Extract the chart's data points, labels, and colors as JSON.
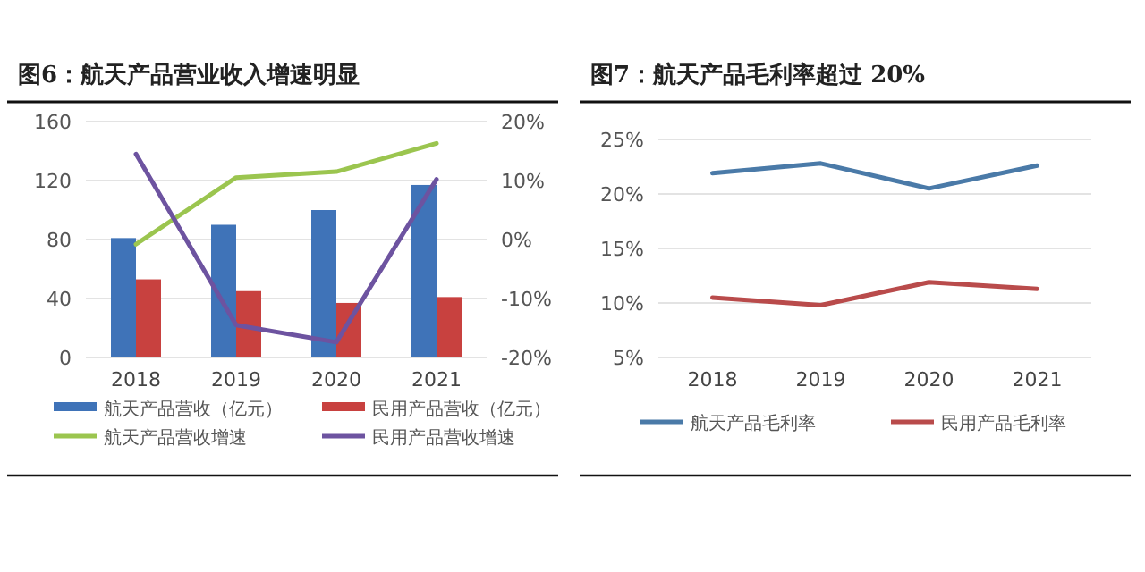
{
  "chart_data": [
    {
      "type": "bar",
      "title": "图6：航天产品营业收入增速明显",
      "categories": [
        "2018",
        "2019",
        "2020",
        "2021"
      ],
      "ylim": [
        0,
        160
      ],
      "yticks": [
        0,
        40,
        80,
        120,
        160
      ],
      "y2lim": [
        -20,
        20
      ],
      "y2ticks": [
        {
          "value": -20,
          "label": "-20%"
        },
        {
          "value": -10,
          "label": "-10%"
        },
        {
          "value": 0,
          "label": "0%"
        },
        {
          "value": 10,
          "label": "10%"
        },
        {
          "value": 20,
          "label": "20%"
        }
      ],
      "grid": "y",
      "legend": "bottom",
      "series": [
        {
          "name": "航天产品营收（亿元）",
          "color": "#3f73b8",
          "values": [
            81,
            90,
            100,
            117
          ]
        },
        {
          "name": "民用产品营收（亿元）",
          "color": "#c8413f",
          "values": [
            53,
            45,
            37,
            41
          ]
        },
        {
          "name": "航天产品营收增速",
          "type": "line",
          "axis": "y2",
          "color": "#9bc54f",
          "values": [
            -0.8,
            10.5,
            11.5,
            16.3
          ]
        },
        {
          "name": "民用产品营收增速",
          "type": "line",
          "axis": "y2",
          "color": "#6d53a0",
          "values": [
            14.5,
            -14.5,
            -17.4,
            10.2
          ]
        }
      ]
    },
    {
      "type": "line",
      "title": "图7：航天产品毛利率超过 20%",
      "categories": [
        "2018",
        "2019",
        "2020",
        "2021"
      ],
      "ylim": [
        5,
        25
      ],
      "yticks": [
        {
          "value": 5,
          "label": "5%"
        },
        {
          "value": 10,
          "label": "10%"
        },
        {
          "value": 15,
          "label": "15%"
        },
        {
          "value": 20,
          "label": "20%"
        },
        {
          "value": 25,
          "label": "25%"
        }
      ],
      "grid": "y",
      "legend": "bottom",
      "series": [
        {
          "name": "航天产品毛利率",
          "color": "#4a7aa8",
          "values": [
            21.9,
            22.8,
            20.5,
            22.6
          ]
        },
        {
          "name": "民用产品毛利率",
          "color": "#b94b4b",
          "values": [
            10.5,
            9.8,
            11.9,
            11.3
          ]
        }
      ]
    }
  ]
}
